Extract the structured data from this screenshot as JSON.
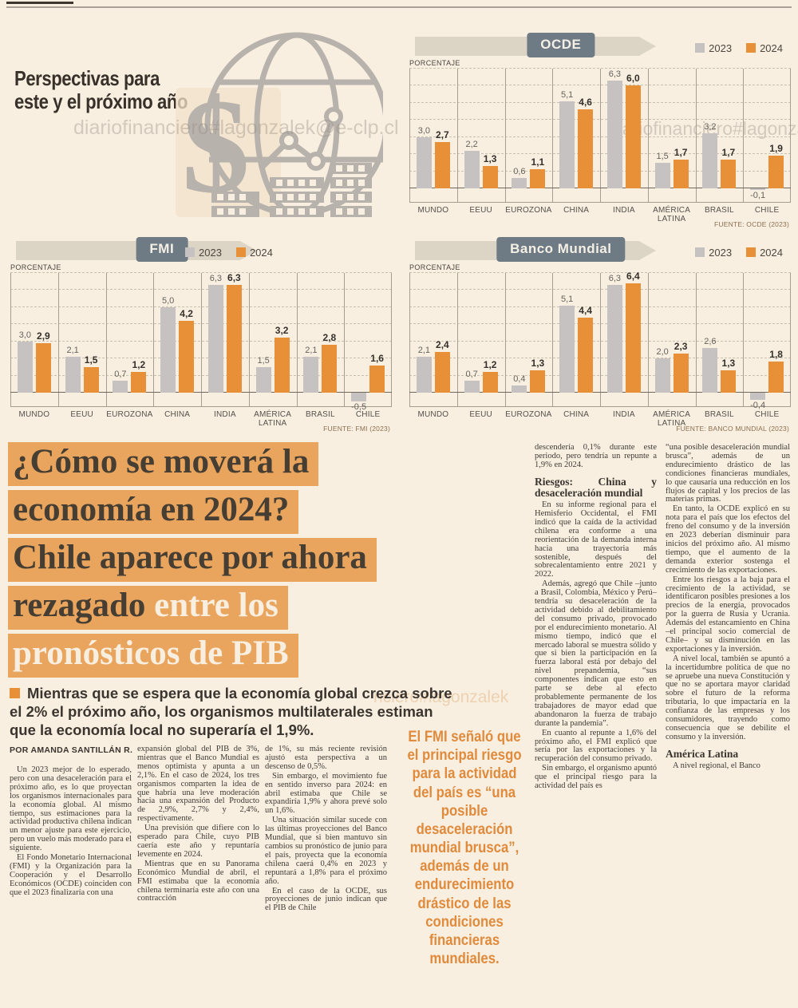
{
  "page": {
    "intro_title_line1": "Perspectivas para",
    "intro_title_line2": "este y el próximo año",
    "watermarks": [
      "diariofinanciero#lagonzalek@e-clp.cl",
      "diariofinanciero#lagonza",
      "nciero#lagonzalek"
    ]
  },
  "colors": {
    "bar_2023": "#c6c2c1",
    "bar_2024": "#e79038",
    "highlight": "#e9a55e",
    "badge": "#6e7a84",
    "page_bg": "#f8efe1"
  },
  "chart_data": [
    {
      "type": "bar",
      "title": "OCDE",
      "unit_label": "PORCENTAJE",
      "source": "FUENTE: OCDE (2023)",
      "legend_right": true,
      "categories": [
        "MUNDO",
        "EEUU",
        "EUROZONA",
        "CHINA",
        "INDIA",
        "AMÉRICA LATINA",
        "BRASIL",
        "CHILE"
      ],
      "series": [
        {
          "name": "2023",
          "values": [
            3.0,
            2.2,
            0.6,
            5.1,
            6.3,
            1.5,
            3.2,
            -0.1
          ],
          "labels": [
            "3,0",
            "2,2",
            "0,6",
            "5,1",
            "6,3",
            "1,5",
            "3,2",
            "-0,1"
          ]
        },
        {
          "name": "2024",
          "values": [
            2.7,
            1.3,
            1.1,
            4.6,
            6.0,
            1.7,
            1.7,
            1.9
          ],
          "labels": [
            "2,7",
            "1,3",
            "1,1",
            "4,6",
            "6,0",
            "1,7",
            "1,7",
            "1,9"
          ]
        }
      ],
      "ylim": [
        -1,
        7
      ],
      "grid": "dashed horizontal, solid vertical separators",
      "legend_position": "top-right"
    },
    {
      "type": "bar",
      "title": "FMI",
      "unit_label": "PORCENTAJE",
      "source": "FUENTE: FMI (2023)",
      "legend_right": false,
      "categories": [
        "MUNDO",
        "EEUU",
        "EUROZONA",
        "CHINA",
        "INDIA",
        "AMÉRICA LATINA",
        "BRASIL",
        "CHILE"
      ],
      "series": [
        {
          "name": "2023",
          "values": [
            3.0,
            2.1,
            0.7,
            5.0,
            6.3,
            1.5,
            2.1,
            -0.5
          ],
          "labels": [
            "3,0",
            "2,1",
            "0,7",
            "5,0",
            "6,3",
            "1,5",
            "2,1",
            "-0,5"
          ]
        },
        {
          "name": "2024",
          "values": [
            2.9,
            1.5,
            1.2,
            4.2,
            6.3,
            3.2,
            2.8,
            1.6
          ],
          "labels": [
            "2,9",
            "1,5",
            "1,2",
            "4,2",
            "6,3",
            "3,2",
            "2,8",
            "1,6"
          ]
        }
      ],
      "ylim": [
        -1,
        7
      ],
      "grid": "dashed horizontal, solid vertical separators",
      "legend_position": "top-center"
    },
    {
      "type": "bar",
      "title": "Banco Mundial",
      "unit_label": "PORCENTAJE",
      "source": "FUENTE: BANCO MUNDIAL (2023)",
      "legend_right": true,
      "categories": [
        "MUNDO",
        "EEUU",
        "EUROZONA",
        "CHINA",
        "INDIA",
        "AMÉRICA LATINA",
        "BRASIL",
        "CHILE"
      ],
      "series": [
        {
          "name": "2023",
          "values": [
            2.1,
            0.7,
            0.4,
            5.1,
            6.3,
            2.0,
            2.6,
            -0.4
          ],
          "labels": [
            "2,1",
            "0,7",
            "0,4",
            "5,1",
            "6,3",
            "2,0",
            "2,6",
            "-0,4"
          ]
        },
        {
          "name": "2024",
          "values": [
            2.4,
            1.2,
            1.3,
            4.4,
            6.4,
            2.3,
            1.3,
            1.8
          ],
          "labels": [
            "2,4",
            "1,2",
            "1,3",
            "4,4",
            "6,4",
            "2,3",
            "1,3",
            "1,8"
          ]
        }
      ],
      "ylim": [
        -1,
        7
      ],
      "grid": "dashed horizontal, solid vertical separators",
      "legend_position": "top-right"
    }
  ],
  "article": {
    "headline_lines": [
      {
        "dark": "¿Cómo se moverá la",
        "light": ""
      },
      {
        "dark": "economía en 2024?",
        "light": ""
      },
      {
        "dark": "Chile aparece por ahora",
        "light": ""
      },
      {
        "dark": "rezagado ",
        "light": "entre los"
      },
      {
        "dark": "",
        "light": "pronósticos de PIB"
      }
    ],
    "kicker": "Mientras que se espera que la economía global crezca sobre el 2% el próximo año, los organismos multilaterales estiman que la economía local no superaría el 1,9%.",
    "byline": "POR AMANDA SANTILLÁN R.",
    "pullquote": "El FMI señaló que el principal riesgo para la actividad del país es “una posible desaceleración mundial brusca”, además de un endurecimiento drástico de las condiciones financieras mundiales.",
    "columns": [
      {
        "blocks": [
          {
            "type": "p",
            "indent": true,
            "text": "Un 2023 mejor de lo esperado, pero con una desaceleración para el próximo año, es lo que proyectan los organismos internacionales para la economía global. Al mismo tiempo, sus estimaciones para la actividad productiva chilena indican un menor ajuste para este ejercicio, pero un vuelo más moderado para el siguiente."
          },
          {
            "type": "p",
            "indent": true,
            "text": "El Fondo Monetario Internacional (FMI) y la Organización para la Cooperación y el Desarrollo Económicos (OCDE) coinciden con que el 2023 finalizaría con una"
          }
        ]
      },
      {
        "blocks": [
          {
            "type": "p",
            "indent": false,
            "text": "expansión global del PIB de 3%, mientras que el Banco Mundial es menos optimista y apunta a un 2,1%. En el caso de 2024, los tres organismos comparten la idea de que habría una leve moderación hacia una expansión del Producto de 2,9%, 2,7% y 2,4%, respectivamente."
          },
          {
            "type": "p",
            "indent": true,
            "text": "Una previsión que difiere con lo esperado para Chile, cuyo PIB caería este año y repuntaría levemente en 2024."
          },
          {
            "type": "p",
            "indent": true,
            "text": "Mientras que en su Panorama Económico Mundial de abril, el FMI estimaba que la economía chilena terminaría este año con una contracción"
          }
        ]
      },
      {
        "blocks": [
          {
            "type": "p",
            "indent": false,
            "text": "de 1%, su más reciente revisión ajustó esta perspectiva a un descenso de 0,5%."
          },
          {
            "type": "p",
            "indent": true,
            "text": "Sin embargo, el movimiento fue en sentido inverso para 2024: en abril estimaba que Chile se expandiría 1,9% y ahora prevé solo un 1,6%."
          },
          {
            "type": "p",
            "indent": true,
            "text": "Una situación similar sucede con las últimas proyecciones del Banco Mundial, que si bien mantuvo sin cambios su pronóstico de junio para el país, proyecta que la economía chilena caerá 0,4% en 2023 y repuntará a 1,8% para el próximo año."
          },
          {
            "type": "p",
            "indent": true,
            "text": "En el caso de la OCDE, sus proyecciones de junio indican que el PIB de Chile"
          }
        ]
      },
      {
        "blocks": [
          {
            "type": "p",
            "indent": false,
            "text": "descendería 0,1% durante este periodo, pero tendría un repunte a 1,9% en 2024."
          },
          {
            "type": "h",
            "text": "Riesgos: China y desaceleración mundial"
          },
          {
            "type": "p",
            "indent": true,
            "text": "En su informe regional para el Hemisferio Occidental, el FMI indicó que la caída de la actividad chilena era conforme a una reorientación de la demanda interna hacia una trayectoria más sostenible, después del sobrecalentamiento entre 2021 y 2022."
          },
          {
            "type": "p",
            "indent": true,
            "text": "Además, agregó que Chile –junto a Brasil, Colombia, México y Perú– tendría su desaceleración de la actividad debido al debilitamiento del consumo privado, provocado por el endurecimiento monetario. Al mismo tiempo, indicó que el mercado laboral se muestra sólido y que si bien la participación en la fuerza laboral está por debajo del nivel prepandemia, “sus componentes indican que esto en parte se debe al efecto probablemente permanente de los trabajadores de mayor edad que abandonaron la fuerza de trabajo durante la pandemia”."
          },
          {
            "type": "p",
            "indent": true,
            "text": "En cuanto al repunte a 1,6% del próximo año, el FMI explicó que sería por las exportaciones y la recuperación del consumo privado."
          },
          {
            "type": "p",
            "indent": true,
            "text": "Sin embargo, el organismo apuntó que el principal riesgo para la actividad del país es"
          }
        ]
      },
      {
        "blocks": [
          {
            "type": "p",
            "indent": false,
            "text": "“una posible desaceleración mundial brusca”, además de un endurecimiento drástico de las condiciones financieras mundiales, lo que causaría una reducción en los flujos de capital y los precios de las materias primas."
          },
          {
            "type": "p",
            "indent": true,
            "text": "En tanto, la OCDE explicó en su nota para el país que los efectos del freno del consumo y de la inversión en 2023 deberían disminuir para inicios del próximo año. Al mismo tiempo, que el aumento de la demanda exterior sostenga el crecimiento de las exportaciones."
          },
          {
            "type": "p",
            "indent": true,
            "text": "Entre los riesgos a la baja para el crecimiento de la actividad, se identificaron posibles presiones a los precios de la energía, provocados por la guerra de Rusia y Ucrania. Además del estancamiento en China –el principal socio comercial de Chile– y su disminución en las exportaciones y la inversión."
          },
          {
            "type": "p",
            "indent": true,
            "text": "A nivel local, también se apuntó a la incertidumbre política de que no se apruebe una nueva Constitución y que no se aportara mayor claridad sobre el futuro de la reforma tributaria, lo que impactaría en la confianza de las empresas y los consumidores, trayendo como consecuencia que se debilite el consumo y la inversión."
          },
          {
            "type": "h",
            "text": "América Latina"
          },
          {
            "type": "p",
            "indent": true,
            "text": "A nivel regional, el Banco"
          }
        ]
      }
    ]
  }
}
